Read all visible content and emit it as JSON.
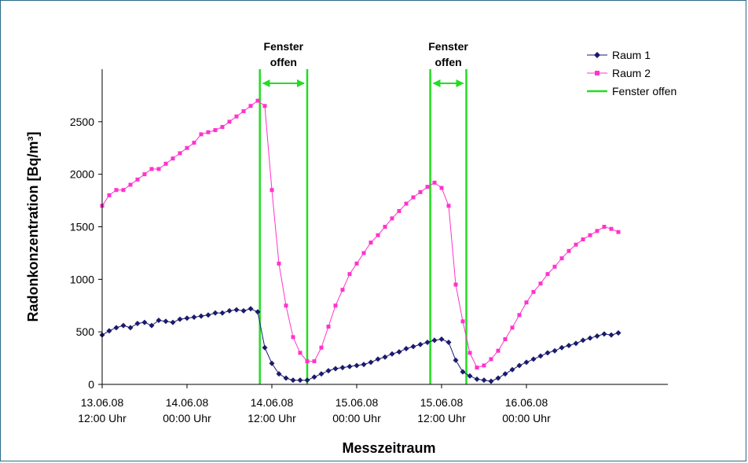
{
  "chart_data": {
    "type": "line",
    "xlabel": "Messzeitraum",
    "ylabel": "Radonkonzentration [Bq/m³]",
    "ylim": [
      0,
      3000
    ],
    "yticks": [
      0,
      500,
      1000,
      1500,
      2000,
      2500
    ],
    "xlim_hours": [
      0,
      80
    ],
    "xticks": [
      {
        "hour": 0,
        "line1": "13.06.08",
        "line2": "12:00 Uhr"
      },
      {
        "hour": 12,
        "line1": "14.06.08",
        "line2": "00:00 Uhr"
      },
      {
        "hour": 24,
        "line1": "14.06.08",
        "line2": "12:00 Uhr"
      },
      {
        "hour": 36,
        "line1": "15.06.08",
        "line2": "00:00 Uhr"
      },
      {
        "hour": 48,
        "line1": "15.06.08",
        "line2": "12:00 Uhr"
      },
      {
        "hour": 60,
        "line1": "16.06.08",
        "line2": "00:00 Uhr"
      }
    ],
    "legend_position": "top-right",
    "series": [
      {
        "name": "Raum 1",
        "color": "#1a1a6e",
        "marker": "diamond",
        "x": [
          0,
          1,
          2,
          3,
          4,
          5,
          6,
          7,
          8,
          9,
          10,
          11,
          12,
          13,
          14,
          15,
          16,
          17,
          18,
          19,
          20,
          21,
          22,
          23,
          24,
          25,
          26,
          27,
          28,
          29,
          30,
          31,
          32,
          33,
          34,
          35,
          36,
          37,
          38,
          39,
          40,
          41,
          42,
          43,
          44,
          45,
          46,
          47,
          48,
          49,
          50,
          51,
          52,
          53,
          54,
          55,
          56,
          57,
          58,
          59,
          60,
          61,
          62,
          63,
          64,
          65,
          66,
          67,
          68,
          69,
          70,
          71,
          72,
          73
        ],
        "y": [
          470,
          510,
          540,
          560,
          540,
          580,
          590,
          560,
          610,
          600,
          590,
          620,
          630,
          640,
          650,
          660,
          680,
          680,
          700,
          710,
          700,
          720,
          690,
          350,
          200,
          100,
          60,
          40,
          40,
          40,
          70,
          100,
          130,
          150,
          160,
          170,
          180,
          190,
          210,
          240,
          260,
          290,
          310,
          340,
          360,
          380,
          400,
          420,
          430,
          400,
          230,
          120,
          80,
          50,
          40,
          30,
          60,
          100,
          140,
          180,
          210,
          240,
          270,
          300,
          320,
          350,
          370,
          390,
          420,
          440,
          460,
          480,
          470,
          490
        ]
      },
      {
        "name": "Raum 2",
        "color": "#ff33cc",
        "marker": "square",
        "x": [
          0,
          1,
          2,
          3,
          4,
          5,
          6,
          7,
          8,
          9,
          10,
          11,
          12,
          13,
          14,
          15,
          16,
          17,
          18,
          19,
          20,
          21,
          22,
          23,
          24,
          25,
          26,
          27,
          28,
          29,
          30,
          31,
          32,
          33,
          34,
          35,
          36,
          37,
          38,
          39,
          40,
          41,
          42,
          43,
          44,
          45,
          46,
          47,
          48,
          49,
          50,
          51,
          52,
          53,
          54,
          55,
          56,
          57,
          58,
          59,
          60,
          61,
          62,
          63,
          64,
          65,
          66,
          67,
          68,
          69,
          70,
          71,
          72,
          73
        ],
        "y": [
          1700,
          1800,
          1850,
          1850,
          1900,
          1950,
          2000,
          2050,
          2050,
          2100,
          2150,
          2200,
          2250,
          2300,
          2380,
          2400,
          2420,
          2450,
          2500,
          2550,
          2600,
          2650,
          2700,
          2650,
          1850,
          1150,
          750,
          450,
          300,
          220,
          220,
          350,
          550,
          750,
          900,
          1050,
          1150,
          1250,
          1350,
          1420,
          1500,
          1580,
          1650,
          1720,
          1780,
          1830,
          1880,
          1920,
          1870,
          1700,
          950,
          600,
          300,
          160,
          180,
          240,
          320,
          430,
          540,
          660,
          780,
          880,
          960,
          1050,
          1120,
          1200,
          1270,
          1330,
          1380,
          1420,
          1460,
          1500,
          1480,
          1450
        ]
      },
      {
        "name": "Fenster offen",
        "color": "#22dd22",
        "marker": "none",
        "x": [
          22.3,
          29.0,
          46.4,
          51.5
        ]
      }
    ],
    "annotations": [
      {
        "text_line1": "Fenster",
        "text_line2": "offen",
        "from_hour": 22.3,
        "to_hour": 29.0
      },
      {
        "text_line1": "Fenster",
        "text_line2": "offen",
        "from_hour": 46.4,
        "to_hour": 51.5
      }
    ]
  }
}
